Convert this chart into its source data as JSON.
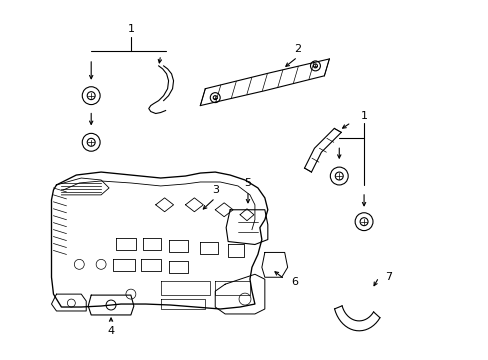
{
  "background_color": "#ffffff",
  "fig_width": 4.89,
  "fig_height": 3.6,
  "dpi": 100,
  "line_color": "#000000",
  "line_width": 0.8,
  "label_fontsize": 8
}
